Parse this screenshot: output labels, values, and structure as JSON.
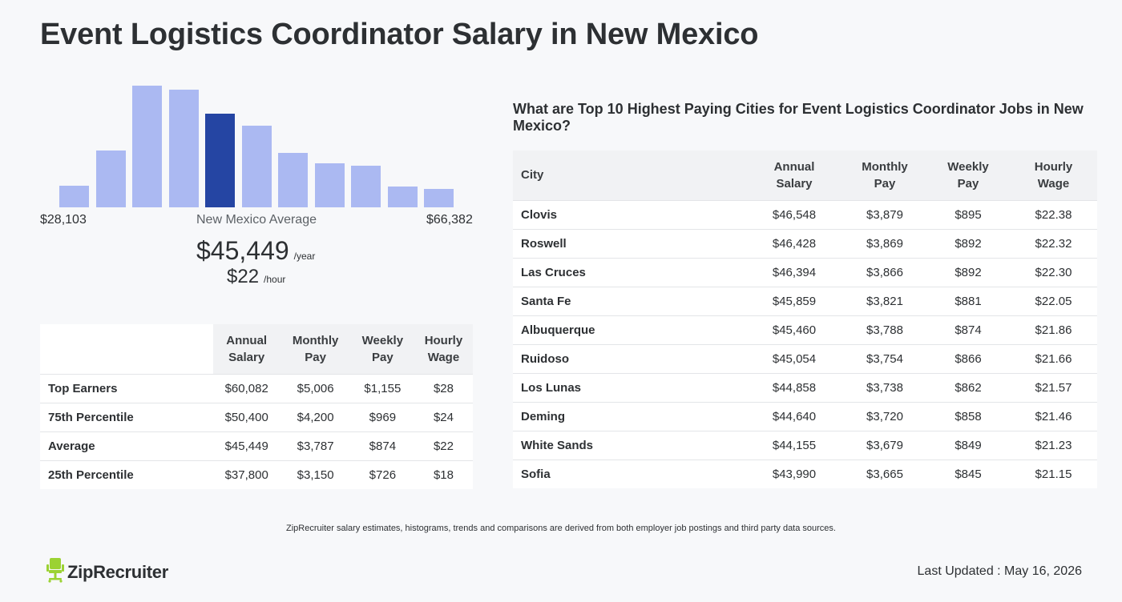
{
  "page": {
    "title": "Event Logistics Coordinator Salary in New Mexico"
  },
  "histogram": {
    "active_index": 4,
    "relative_heights": [
      0.18,
      0.47,
      1.0,
      0.97,
      0.77,
      0.67,
      0.45,
      0.36,
      0.34,
      0.17,
      0.15
    ],
    "colors": {
      "bar": "#abb9f2",
      "active": "#2545a3"
    },
    "min_label": "$28,103",
    "max_label": "$66,382",
    "avg_label": "New Mexico Average"
  },
  "average": {
    "yearly": "$45,449",
    "yearly_unit": "/year",
    "hourly": "$22",
    "hourly_unit": "/hour"
  },
  "percentile_table": {
    "headers": [
      [
        "Annual",
        "Salary"
      ],
      [
        "Monthly",
        "Pay"
      ],
      [
        "Weekly",
        "Pay"
      ],
      [
        "Hourly",
        "Wage"
      ]
    ],
    "rows": [
      {
        "label": "Top Earners",
        "annual": "$60,082",
        "monthly": "$5,006",
        "weekly": "$1,155",
        "hourly": "$28"
      },
      {
        "label": "75th Percentile",
        "annual": "$50,400",
        "monthly": "$4,200",
        "weekly": "$969",
        "hourly": "$24"
      },
      {
        "label": "Average",
        "annual": "$45,449",
        "monthly": "$3,787",
        "weekly": "$874",
        "hourly": "$22"
      },
      {
        "label": "25th Percentile",
        "annual": "$37,800",
        "monthly": "$3,150",
        "weekly": "$726",
        "hourly": "$18"
      }
    ]
  },
  "cities": {
    "title": "What are Top 10 Highest Paying Cities for Event Logistics Coordinator Jobs in New Mexico?",
    "headers": {
      "city": "City",
      "annual": [
        "Annual",
        "Salary"
      ],
      "monthly": [
        "Monthly",
        "Pay"
      ],
      "weekly": [
        "Weekly",
        "Pay"
      ],
      "hourly": [
        "Hourly",
        "Wage"
      ]
    },
    "rows": [
      {
        "city": "Clovis",
        "annual": "$46,548",
        "monthly": "$3,879",
        "weekly": "$895",
        "hourly": "$22.38"
      },
      {
        "city": "Roswell",
        "annual": "$46,428",
        "monthly": "$3,869",
        "weekly": "$892",
        "hourly": "$22.32"
      },
      {
        "city": "Las Cruces",
        "annual": "$46,394",
        "monthly": "$3,866",
        "weekly": "$892",
        "hourly": "$22.30"
      },
      {
        "city": "Santa Fe",
        "annual": "$45,859",
        "monthly": "$3,821",
        "weekly": "$881",
        "hourly": "$22.05"
      },
      {
        "city": "Albuquerque",
        "annual": "$45,460",
        "monthly": "$3,788",
        "weekly": "$874",
        "hourly": "$21.86"
      },
      {
        "city": "Ruidoso",
        "annual": "$45,054",
        "monthly": "$3,754",
        "weekly": "$866",
        "hourly": "$21.66"
      },
      {
        "city": "Los Lunas",
        "annual": "$44,858",
        "monthly": "$3,738",
        "weekly": "$862",
        "hourly": "$21.57"
      },
      {
        "city": "Deming",
        "annual": "$44,640",
        "monthly": "$3,720",
        "weekly": "$858",
        "hourly": "$21.46"
      },
      {
        "city": "White Sands",
        "annual": "$44,155",
        "monthly": "$3,679",
        "weekly": "$849",
        "hourly": "$21.23"
      },
      {
        "city": "Sofia",
        "annual": "$43,990",
        "monthly": "$3,665",
        "weekly": "$845",
        "hourly": "$21.15"
      }
    ]
  },
  "footer": {
    "note": "ZipRecruiter salary estimates, histograms, trends and comparisons are derived from both employer job postings and third party data sources.",
    "logo_text": "ZipRecruiter",
    "logo_icon": "chair-icon",
    "logo_color": "#9bd233",
    "last_updated": "Last Updated : May 16, 2026"
  }
}
